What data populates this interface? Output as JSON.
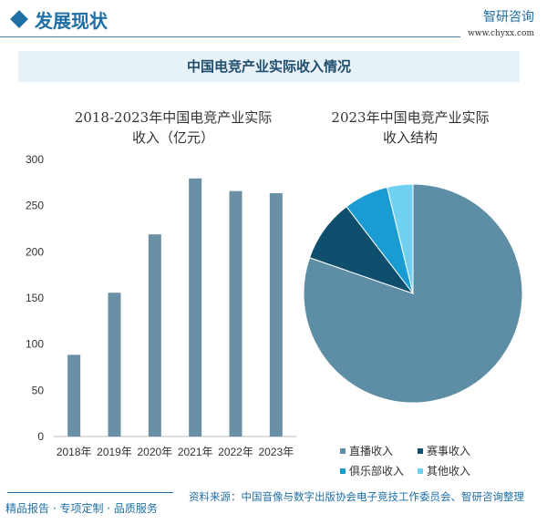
{
  "header": {
    "title": "发展现状",
    "logo": "智研咨询",
    "url": "www.chyxx.com"
  },
  "banner": "中国电竞产业实际收入情况",
  "chart_data": [
    {
      "type": "bar",
      "title": "2018-2023年中国电竞产业实际收入（亿元）",
      "title_lines": [
        "2018-2023年中国电竞产业实际",
        "收入（亿元）"
      ],
      "categories": [
        "2018年",
        "2019年",
        "2020年",
        "2021年",
        "2022年",
        "2023年"
      ],
      "values": [
        88.5,
        155.7,
        218.9,
        279.5,
        265.8,
        263.5
      ],
      "ylim": [
        0,
        300
      ],
      "yticks": [
        "0",
        "50",
        "100",
        "150",
        "200",
        "250",
        "300"
      ],
      "grid": false,
      "color": "#6990a5"
    },
    {
      "type": "pie",
      "title": "2023年中国电竞产业实际收入结构",
      "title_lines": [
        "2023年中国电竞产业实际",
        "收入结构"
      ],
      "labels": [
        "直播收入",
        "赛事收入",
        "俱乐部收入",
        "其他收入"
      ],
      "values": [
        80.3,
        9.3,
        6.6,
        3.8
      ],
      "colors": [
        "#5e8ea6",
        "#0f4e6c",
        "#1a9bd2",
        "#6fd0ef"
      ],
      "legend": "bottom"
    }
  ],
  "footer": {
    "slogan": "精品报告 · 专项定制 · 品质服务",
    "source": "资料来源：中国音像与数字出版协会电子竞技工作委员会、智研咨询整理"
  }
}
